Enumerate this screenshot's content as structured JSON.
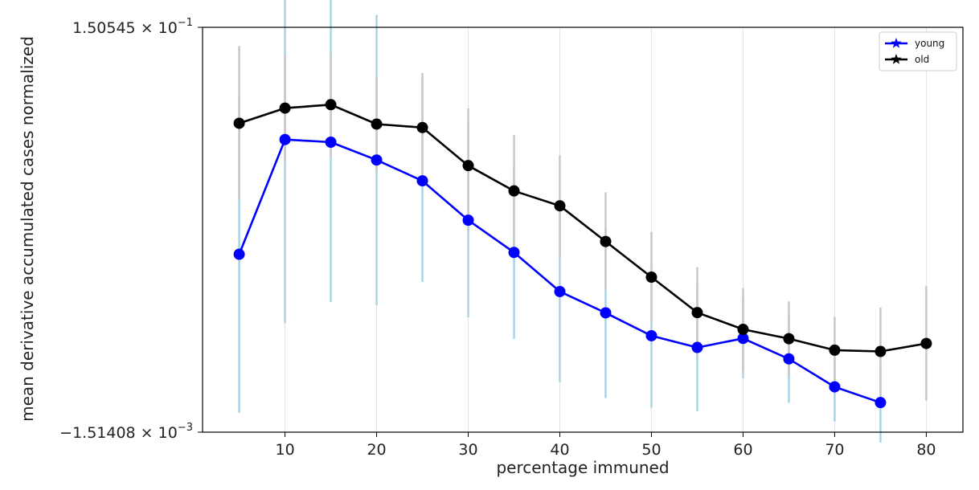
{
  "chart_data": {
    "type": "line",
    "title": "",
    "xlabel": "percentage immuned",
    "ylabel": "mean derivative accumulated cases normalized",
    "xlim": [
      1,
      84
    ],
    "ylim": [
      -0.00151408,
      0.150545
    ],
    "x_ticks": [
      10,
      20,
      30,
      40,
      50,
      60,
      70,
      80
    ],
    "y_ticks": [
      {
        "value": 0.150545,
        "mantissa": "1.50545",
        "exponent": "−1"
      },
      {
        "value": -0.00151408,
        "mantissa": "−1.51408",
        "exponent": "−3"
      }
    ],
    "grid": "vertical",
    "legend_position": "top-right",
    "series": [
      {
        "name": "young",
        "color": "#0000ff",
        "errorbar_color": "#a9d3e6",
        "x": [
          5,
          10,
          15,
          20,
          25,
          30,
          35,
          40,
          45,
          50,
          55,
          60,
          65,
          70,
          75
        ],
        "y": [
          0.0653,
          0.1084,
          0.1074,
          0.1007,
          0.0929,
          0.0781,
          0.066,
          0.0513,
          0.0433,
          0.0347,
          0.0303,
          0.0337,
          0.026,
          0.0155,
          0.0096
        ],
        "err": [
          0.0595,
          0.069,
          0.06,
          0.0545,
          0.038,
          0.0365,
          0.0325,
          0.034,
          0.032,
          0.027,
          0.024,
          0.015,
          0.0165,
          0.013,
          0.015
        ]
      },
      {
        "name": "old",
        "color": "#000000",
        "errorbar_color": "#c8c8c8",
        "x": [
          5,
          10,
          15,
          20,
          25,
          30,
          35,
          40,
          45,
          50,
          55,
          60,
          65,
          70,
          75,
          80
        ],
        "y": [
          0.1145,
          0.1202,
          0.1215,
          0.1142,
          0.1129,
          0.0986,
          0.0891,
          0.0835,
          0.0701,
          0.0567,
          0.0434,
          0.0371,
          0.0336,
          0.0293,
          0.0288,
          0.0318
        ],
        "err": [
          0.029,
          0.02,
          0.0195,
          0.0175,
          0.0205,
          0.0215,
          0.021,
          0.019,
          0.0185,
          0.017,
          0.017,
          0.0155,
          0.014,
          0.0125,
          0.0165,
          0.0215
        ]
      }
    ]
  }
}
